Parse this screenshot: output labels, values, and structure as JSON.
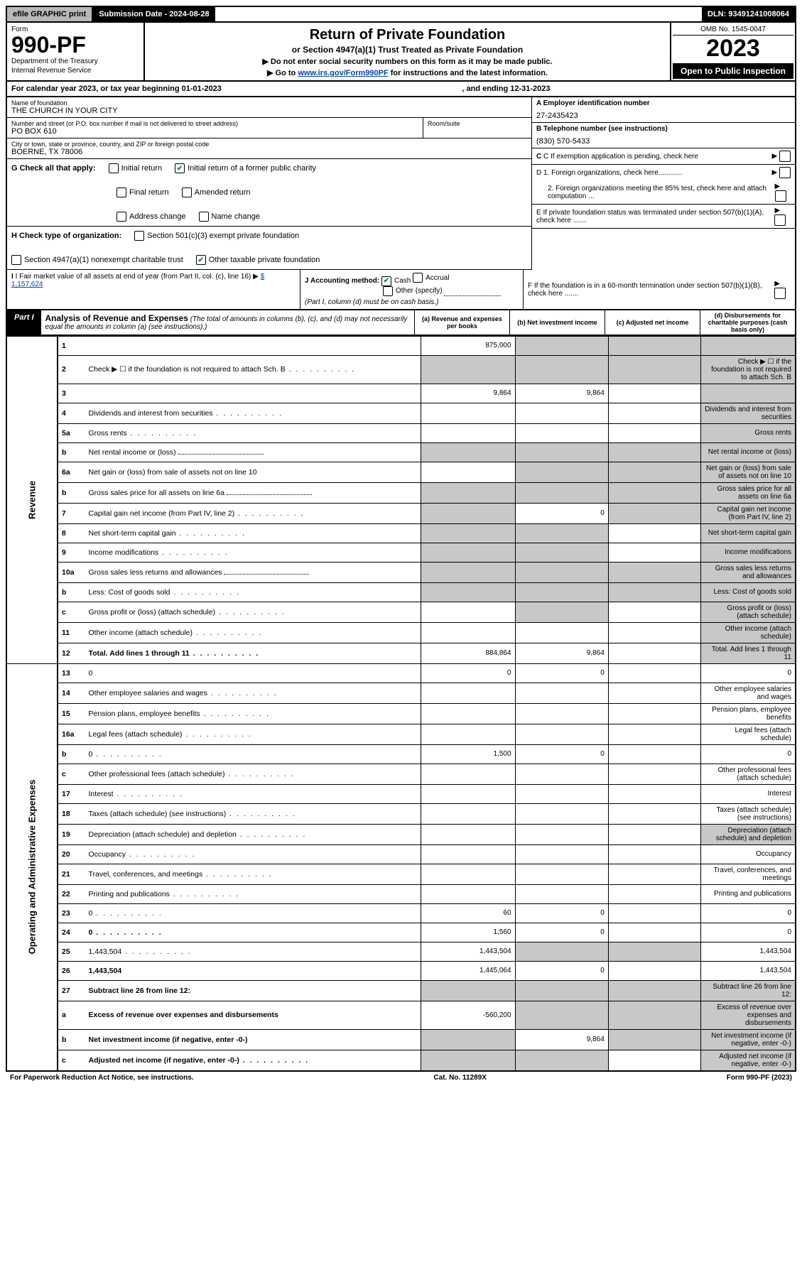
{
  "topbar": {
    "efile": "efile GRAPHIC print",
    "subdate_label": "Submission Date - 2024-08-28",
    "dln": "DLN: 93491241008064"
  },
  "header": {
    "form_label": "Form",
    "form_no": "990-PF",
    "dept": "Department of the Treasury",
    "irs": "Internal Revenue Service",
    "title": "Return of Private Foundation",
    "subtitle": "or Section 4947(a)(1) Trust Treated as Private Foundation",
    "line1": "▶ Do not enter social security numbers on this form as it may be made public.",
    "line2_pre": "▶ Go to ",
    "line2_link": "www.irs.gov/Form990PF",
    "line2_post": " for instructions and the latest information.",
    "omb": "OMB No. 1545-0047",
    "year": "2023",
    "open": "Open to Public Inspection"
  },
  "calyear": {
    "pre": "For calendar year 2023, or tax year beginning 01-01-2023",
    "mid": ", and ending 12-31-2023"
  },
  "info": {
    "name_label": "Name of foundation",
    "name": "THE CHURCH IN YOUR CITY",
    "street_label": "Number and street (or P.O. box number if mail is not delivered to street address)",
    "street": "PO BOX 610",
    "room_label": "Room/suite",
    "city_label": "City or town, state or province, country, and ZIP or foreign postal code",
    "city": "BOERNE, TX  78006",
    "a_label": "A Employer identification number",
    "a_val": "27-2435423",
    "b_label": "B Telephone number (see instructions)",
    "b_val": "(830) 570-5433",
    "c_label": "C If exemption application is pending, check here",
    "d1": "D 1. Foreign organizations, check here............",
    "d2": "2. Foreign organizations meeting the 85% test, check here and attach computation ...",
    "e": "E  If private foundation status was terminated under section 507(b)(1)(A), check here .......",
    "f": "F  If the foundation is in a 60-month termination under section 507(b)(1)(B), check here .......",
    "g_label": "G Check all that apply:",
    "g_initial": "Initial return",
    "g_initial_former": "Initial return of a former public charity",
    "g_final": "Final return",
    "g_amended": "Amended return",
    "g_address": "Address change",
    "g_name": "Name change",
    "h_label": "H Check type of organization:",
    "h_501": "Section 501(c)(3) exempt private foundation",
    "h_4947": "Section 4947(a)(1) nonexempt charitable trust",
    "h_other": "Other taxable private foundation",
    "i_label": "I Fair market value of all assets at end of year (from Part II, col. (c), line 16)",
    "i_val": "$  1,157,624",
    "j_label": "J Accounting method:",
    "j_cash": "Cash",
    "j_accrual": "Accrual",
    "j_other": "Other (specify)",
    "j_note": "(Part I, column (d) must be on cash basis.)"
  },
  "part1": {
    "label": "Part I",
    "title": "Analysis of Revenue and Expenses",
    "note": "(The total of amounts in columns (b), (c), and (d) may not necessarily equal the amounts in column (a) (see instructions).)",
    "cols": {
      "a": "(a) Revenue and expenses per books",
      "b": "(b) Net investment income",
      "c": "(c) Adjusted net income",
      "d": "(d) Disbursements for charitable purposes (cash basis only)"
    }
  },
  "side": {
    "rev": "Revenue",
    "exp": "Operating and Administrative Expenses"
  },
  "rows": [
    {
      "n": "1",
      "d": "",
      "a": "875,000",
      "b": "",
      "c": "",
      "grey": [
        "b",
        "c",
        "d"
      ]
    },
    {
      "n": "2",
      "d": "Check ▶ ☐ if the foundation is not required to attach Sch. B",
      "dots": true,
      "grey": [
        "a",
        "b",
        "c",
        "d"
      ]
    },
    {
      "n": "3",
      "d": "",
      "a": "9,864",
      "b": "9,864",
      "c": "",
      "grey": [
        "d"
      ]
    },
    {
      "n": "4",
      "d": "Dividends and interest from securities",
      "dots": true,
      "grey": [
        "d"
      ]
    },
    {
      "n": "5a",
      "d": "Gross rents",
      "dots": true,
      "grey": [
        "d"
      ]
    },
    {
      "n": "b",
      "d": "Net rental income or (loss)",
      "underline": true,
      "grey": [
        "a",
        "b",
        "c",
        "d"
      ]
    },
    {
      "n": "6a",
      "d": "Net gain or (loss) from sale of assets not on line 10",
      "grey": [
        "b",
        "c",
        "d"
      ]
    },
    {
      "n": "b",
      "d": "Gross sales price for all assets on line 6a",
      "underline": true,
      "grey": [
        "a",
        "b",
        "c",
        "d"
      ]
    },
    {
      "n": "7",
      "d": "Capital gain net income (from Part IV, line 2)",
      "dots": true,
      "b": "0",
      "grey": [
        "a",
        "c",
        "d"
      ]
    },
    {
      "n": "8",
      "d": "Net short-term capital gain",
      "dots": true,
      "grey": [
        "a",
        "b",
        "d"
      ]
    },
    {
      "n": "9",
      "d": "Income modifications",
      "dots": true,
      "grey": [
        "a",
        "b",
        "d"
      ]
    },
    {
      "n": "10a",
      "d": "Gross sales less returns and allowances",
      "underline": true,
      "grey": [
        "a",
        "b",
        "c",
        "d"
      ]
    },
    {
      "n": "b",
      "d": "Less: Cost of goods sold",
      "dots": true,
      "underline": true,
      "grey": [
        "a",
        "b",
        "c",
        "d"
      ]
    },
    {
      "n": "c",
      "d": "Gross profit or (loss) (attach schedule)",
      "dots": true,
      "grey": [
        "b",
        "d"
      ]
    },
    {
      "n": "11",
      "d": "Other income (attach schedule)",
      "dots": true,
      "grey": [
        "d"
      ]
    },
    {
      "n": "12",
      "d": "Total. Add lines 1 through 11",
      "dots": true,
      "a": "884,864",
      "b": "9,864",
      "bold": true,
      "grey": [
        "d"
      ]
    }
  ],
  "rows2": [
    {
      "n": "13",
      "d": "0",
      "a": "0",
      "b": "0"
    },
    {
      "n": "14",
      "d": "Other employee salaries and wages",
      "dots": true
    },
    {
      "n": "15",
      "d": "Pension plans, employee benefits",
      "dots": true
    },
    {
      "n": "16a",
      "d": "Legal fees (attach schedule)",
      "dots": true
    },
    {
      "n": "b",
      "d": "0",
      "dots": true,
      "a": "1,500",
      "b": "0"
    },
    {
      "n": "c",
      "d": "Other professional fees (attach schedule)",
      "dots": true
    },
    {
      "n": "17",
      "d": "Interest",
      "dots": true
    },
    {
      "n": "18",
      "d": "Taxes (attach schedule) (see instructions)",
      "dots": true
    },
    {
      "n": "19",
      "d": "Depreciation (attach schedule) and depletion",
      "dots": true,
      "grey": [
        "d"
      ]
    },
    {
      "n": "20",
      "d": "Occupancy",
      "dots": true
    },
    {
      "n": "21",
      "d": "Travel, conferences, and meetings",
      "dots": true
    },
    {
      "n": "22",
      "d": "Printing and publications",
      "dots": true
    },
    {
      "n": "23",
      "d": "0",
      "dots": true,
      "a": "60",
      "b": "0"
    },
    {
      "n": "24",
      "d": "0",
      "dots": true,
      "a": "1,560",
      "b": "0",
      "bold": true
    },
    {
      "n": "25",
      "d": "1,443,504",
      "dots": true,
      "a": "1,443,504",
      "grey": [
        "b",
        "c"
      ]
    },
    {
      "n": "26",
      "d": "1,443,504",
      "a": "1,445,064",
      "b": "0",
      "bold": true
    },
    {
      "n": "27",
      "d": "Subtract line 26 from line 12:",
      "grey": [
        "a",
        "b",
        "c",
        "d"
      ],
      "bold": true
    },
    {
      "n": "a",
      "d": "Excess of revenue over expenses and disbursements",
      "a": "-560,200",
      "bold": true,
      "grey": [
        "b",
        "c",
        "d"
      ]
    },
    {
      "n": "b",
      "d": "Net investment income (if negative, enter -0-)",
      "b": "9,864",
      "bold": true,
      "grey": [
        "a",
        "c",
        "d"
      ]
    },
    {
      "n": "c",
      "d": "Adjusted net income (if negative, enter -0-)",
      "dots": true,
      "bold": true,
      "grey": [
        "a",
        "b",
        "d"
      ]
    }
  ],
  "footer": {
    "left": "For Paperwork Reduction Act Notice, see instructions.",
    "mid": "Cat. No. 11289X",
    "right": "Form 990-PF (2023)"
  }
}
